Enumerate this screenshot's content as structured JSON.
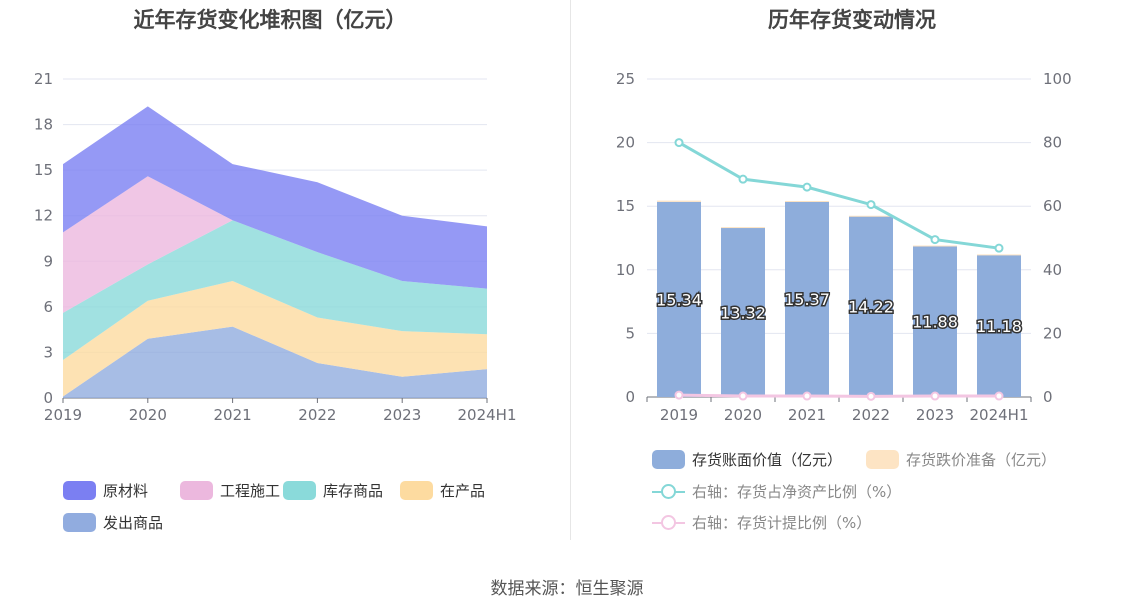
{
  "titles": {
    "left": "近年存货变化堆积图（亿元）",
    "right": "历年存货变动情况"
  },
  "source": "数据来源：恒生聚源",
  "colors": {
    "raw_materials": "#7b7ff2",
    "construction": "#ecb8de",
    "stock_goods": "#8adada",
    "in_production": "#fddba0",
    "shipped_goods": "#91acdf",
    "bar_book": "#8eaddb",
    "bar_reserve": "#fde4c4",
    "line_ratio": "#84d7d7",
    "line_provision": "#f3c6e2",
    "grid": "#e3e6f0"
  },
  "chart_data": [
    {
      "type": "area",
      "title": "近年存货变化堆积图（亿元）",
      "categories": [
        "2019",
        "2020",
        "2021",
        "2022",
        "2023",
        "2024H1"
      ],
      "ylim": [
        0,
        21
      ],
      "yticks": [
        "0",
        "3",
        "6",
        "9",
        "12",
        "15",
        "18",
        "21"
      ],
      "stacked": true,
      "legend_position": "bottom-left",
      "series": [
        {
          "name": "发出商品",
          "values": [
            0.1,
            3.9,
            4.7,
            2.3,
            1.4,
            1.9
          ]
        },
        {
          "name": "在产品",
          "values": [
            2.4,
            2.5,
            3.0,
            3.0,
            3.0,
            2.3
          ]
        },
        {
          "name": "库存商品",
          "values": [
            3.1,
            2.4,
            4.0,
            4.3,
            3.3,
            3.0
          ]
        },
        {
          "name": "工程施工",
          "values": [
            5.3,
            5.8,
            0.0,
            0.0,
            0.0,
            0.0
          ]
        },
        {
          "name": "原材料",
          "values": [
            4.5,
            4.6,
            3.7,
            4.6,
            4.3,
            4.1
          ]
        }
      ],
      "legend_order": [
        "原材料",
        "工程施工",
        "库存商品",
        "在产品",
        "发出商品"
      ]
    },
    {
      "type": "bar",
      "title": "历年存货变动情况",
      "categories": [
        "2019",
        "2020",
        "2021",
        "2022",
        "2023",
        "2024H1"
      ],
      "ylim": [
        0,
        25
      ],
      "yticks": [
        "0",
        "5",
        "10",
        "15",
        "20",
        "25"
      ],
      "y2lim": [
        0,
        100
      ],
      "y2ticks": [
        "0",
        "20",
        "40",
        "60",
        "80",
        "100"
      ],
      "legend_position": "bottom",
      "series": [
        {
          "name": "存货账面价值（亿元）",
          "type": "bar",
          "values": [
            15.34,
            13.32,
            15.37,
            14.22,
            11.88,
            11.18
          ],
          "labels": [
            "15.34",
            "13.32",
            "15.37",
            "14.22",
            "11.88",
            "11.18"
          ]
        },
        {
          "name": "存货跌价准备（亿元）",
          "type": "bar",
          "values": [
            0.1,
            0.04,
            0.04,
            0.03,
            0.03,
            0.03
          ]
        },
        {
          "name": "右轴：存货占净资产比例（%）",
          "type": "line",
          "axis": "right",
          "values": [
            80,
            68.5,
            66,
            60.5,
            49.5,
            46.8
          ]
        },
        {
          "name": "右轴：存货计提比例（%）",
          "type": "line",
          "axis": "right",
          "values": [
            0.6,
            0.3,
            0.3,
            0.2,
            0.3,
            0.3
          ]
        }
      ]
    }
  ]
}
